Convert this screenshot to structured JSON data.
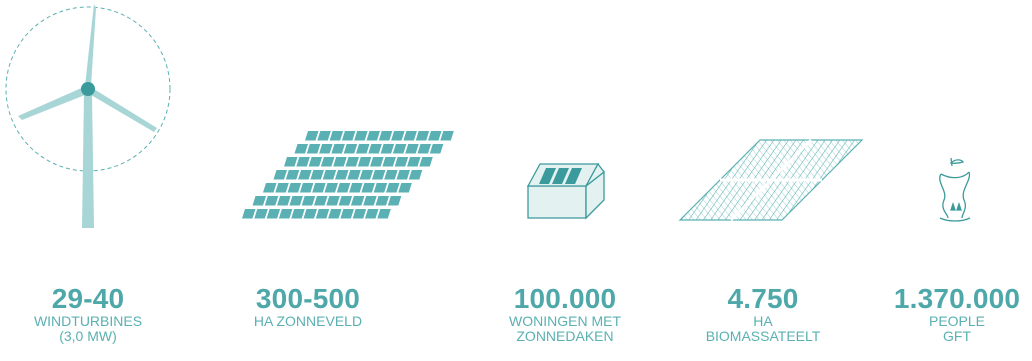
{
  "colors": {
    "accent": "#5ab0b2",
    "accent_light": "#a8d5d6",
    "accent_dark": "#3b9a9c",
    "panel": "#e4f1f1"
  },
  "stats": [
    {
      "icon": "wind-turbine-icon",
      "value": "29-40",
      "lines": [
        "WINDTURBINES",
        "(3,0 MW)"
      ]
    },
    {
      "icon": "solar-field-icon",
      "value": "300-500",
      "lines": [
        "HA ZONNEVELD"
      ]
    },
    {
      "icon": "solar-roof-house-icon",
      "value": "100.000",
      "lines": [
        "WONINGEN MET",
        "ZONNEDAKEN"
      ]
    },
    {
      "icon": "biomass-field-icon",
      "value": "4.750",
      "lines": [
        "HA",
        "BIOMASSATEELT"
      ]
    },
    {
      "icon": "apple-core-icon",
      "value": "1.370.000",
      "lines": [
        "PEOPLE",
        "GFT"
      ]
    }
  ]
}
